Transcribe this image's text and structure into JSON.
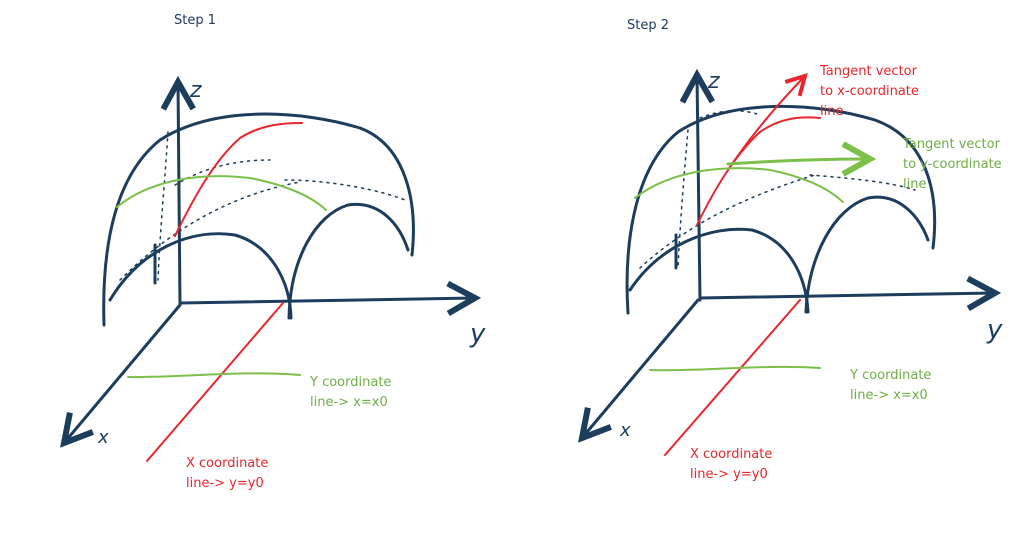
{
  "step1": {
    "title": "Step 1",
    "axis_z": "z",
    "axis_y": "y",
    "axis_x": "x",
    "y_line_label_1": "Y coordinate",
    "y_line_label_2": "line-> x=x0",
    "x_line_label_1": "X coordinate",
    "x_line_label_2": "line-> y=y0"
  },
  "step2": {
    "title": "Step 2",
    "axis_z": "z",
    "axis_y": "y",
    "axis_x": "x",
    "tangent_x_1": "Tangent vector",
    "tangent_x_2": "to x-coordinate",
    "tangent_x_3": "line",
    "tangent_y_1": "Tangent vector",
    "tangent_y_2": "to y-coordinate",
    "tangent_y_3": "line",
    "y_line_label_1": "Y coordinate",
    "y_line_label_2": "line-> x=x0",
    "x_line_label_1": "X coordinate",
    "x_line_label_2": "line-> y=y0"
  },
  "colors": {
    "axes_surface": "#1d3d5c",
    "x_coordinate_line": "#e8262b",
    "y_coordinate_line": "#70ad47",
    "title": "#1f3864"
  }
}
